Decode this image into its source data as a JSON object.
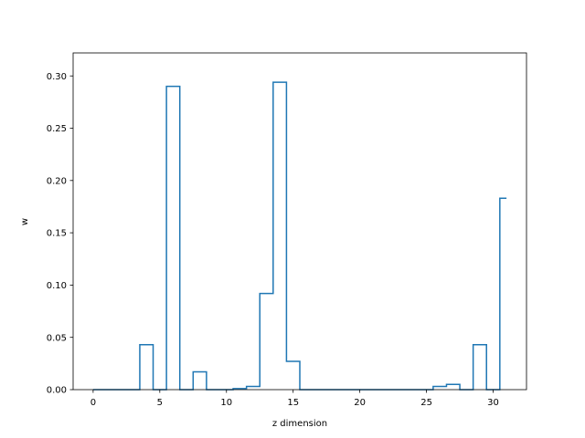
{
  "chart_data": {
    "type": "step",
    "title": "",
    "xlabel": "z dimension",
    "ylabel": "w",
    "xlim": [
      -1.5,
      32.5
    ],
    "ylim": [
      0,
      0.322
    ],
    "xticks": [
      0,
      5,
      10,
      15,
      20,
      25,
      30
    ],
    "xtick_labels": [
      "0",
      "5",
      "10",
      "15",
      "20",
      "25",
      "30"
    ],
    "yticks": [
      0.0,
      0.05,
      0.1,
      0.15,
      0.2,
      0.25,
      0.3
    ],
    "ytick_labels": [
      "0.00",
      "0.05",
      "0.10",
      "0.15",
      "0.20",
      "0.25",
      "0.30"
    ],
    "grid": false,
    "series": [
      {
        "color": "#1f77b4",
        "step": "mid",
        "x": [
          0,
          1,
          2,
          3,
          4,
          5,
          6,
          7,
          8,
          9,
          10,
          11,
          12,
          13,
          14,
          15,
          16,
          17,
          18,
          19,
          20,
          21,
          22,
          23,
          24,
          25,
          26,
          27,
          28,
          29,
          30,
          31
        ],
        "values": [
          0,
          0,
          0,
          0,
          0.043,
          0,
          0.29,
          0,
          0.017,
          0,
          0,
          0.001,
          0.003,
          0.092,
          0.294,
          0.027,
          0,
          0,
          0,
          0,
          0,
          0,
          0,
          0,
          0,
          0,
          0.003,
          0.005,
          0,
          0.043,
          0,
          0.183
        ]
      }
    ]
  }
}
